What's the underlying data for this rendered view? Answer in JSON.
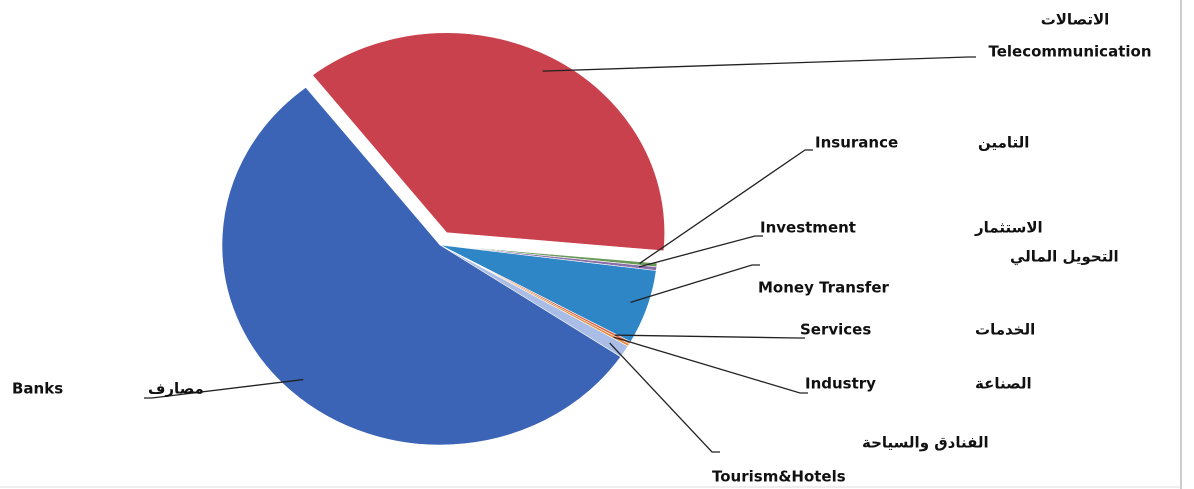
{
  "chart_data": {
    "type": "pie",
    "categories": [
      "Telecommunication",
      "Insurance",
      "Investment",
      "Money Transfer",
      "Services",
      "Industry",
      "Tourism&Hotels",
      "Banks"
    ],
    "categories_ar": [
      "الاتصالات",
      "التامين",
      "الاستثمار",
      "التحويل المالي",
      "الخدمات",
      "الصناعة",
      "الفنادق والسياحة",
      "مصارف"
    ],
    "values": [
      37,
      0.3,
      0.3,
      6,
      0.2,
      0.2,
      1,
      55
    ],
    "colors": [
      "#c9414c",
      "#6a9a5a",
      "#8a6fa8",
      "#2e86c6",
      "#e0603f",
      "#e58a3a",
      "#a9bde6",
      "#3b63b6"
    ],
    "exploded": [
      true,
      false,
      false,
      false,
      false,
      false,
      false,
      false
    ]
  }
}
